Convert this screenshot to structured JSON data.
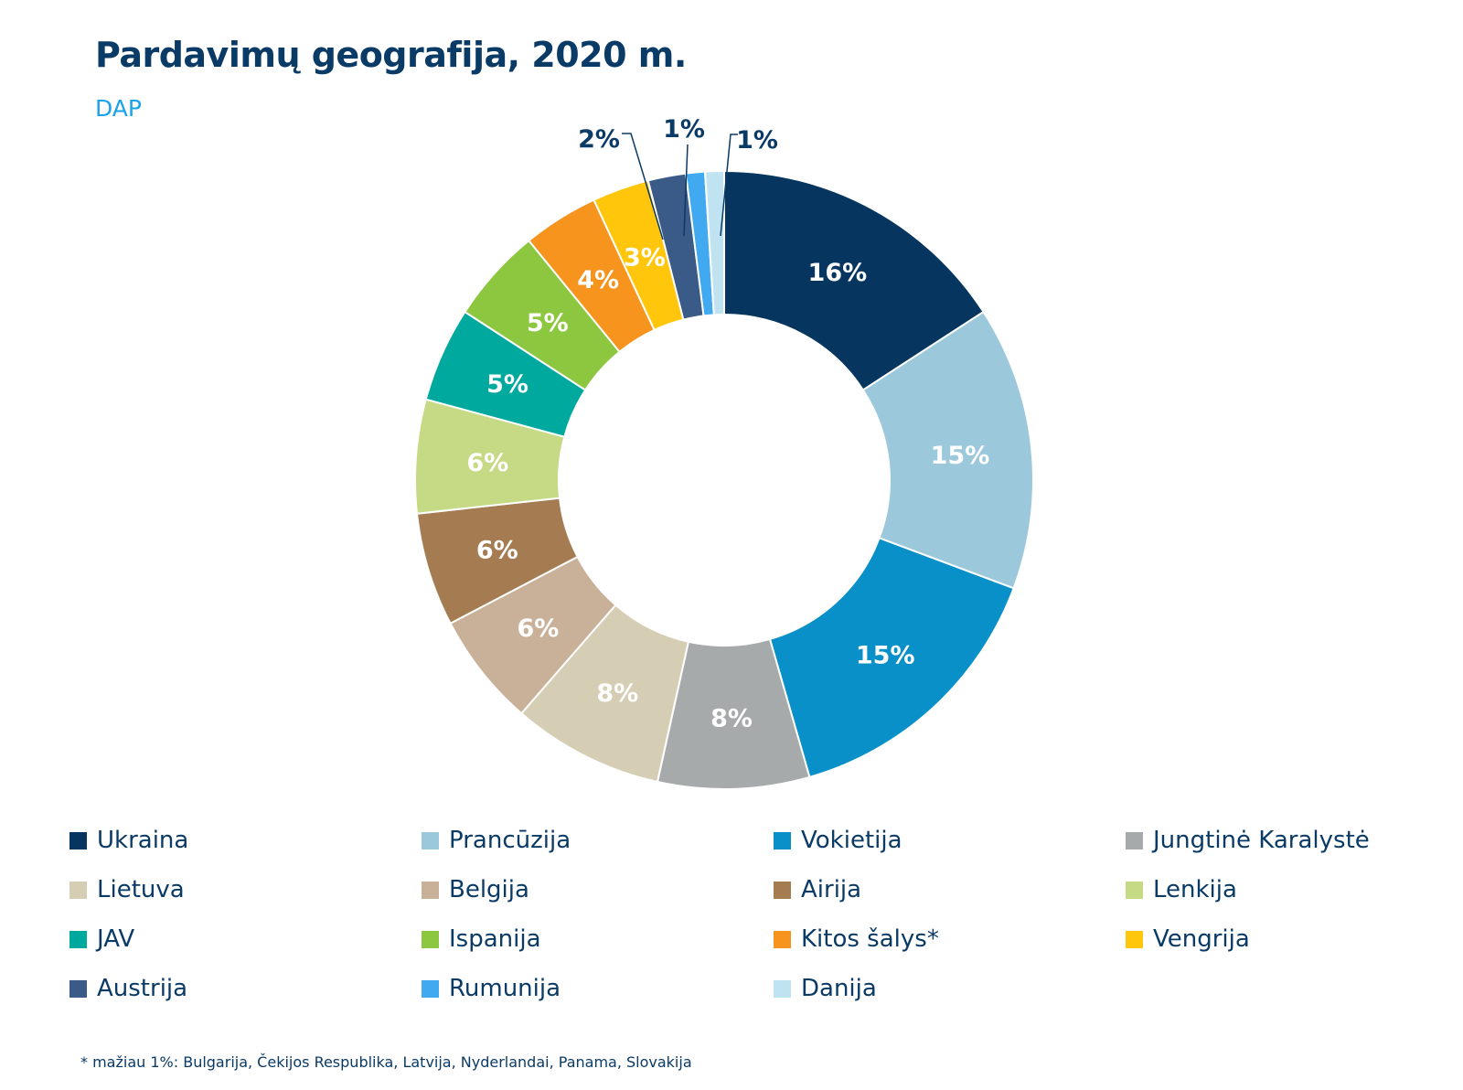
{
  "chart_data": {
    "type": "pie",
    "title": "Pardavimų geografija, 2020 m.",
    "subtitle": "DAP",
    "donut": true,
    "slices": [
      {
        "label": "Ukraina",
        "value": 16,
        "display": "16%",
        "color": "#06365f",
        "text_color": "#ffffff"
      },
      {
        "label": "Prancūzija",
        "value": 15,
        "display": "15%",
        "color": "#9cc8dc",
        "text_color": "#ffffff"
      },
      {
        "label": "Vokietija",
        "value": 15,
        "display": "15%",
        "color": "#0990c8",
        "text_color": "#ffffff"
      },
      {
        "label": "Jungtinė Karalystė",
        "value": 8,
        "display": "8%",
        "color": "#a7aaaa",
        "text_color": "#ffffff"
      },
      {
        "label": "Lietuva",
        "value": 8,
        "display": "8%",
        "color": "#d6ceb4",
        "text_color": "#ffffff"
      },
      {
        "label": "Belgija",
        "value": 6,
        "display": "6%",
        "color": "#c8b198",
        "text_color": "#ffffff"
      },
      {
        "label": "Airija",
        "value": 6,
        "display": "6%",
        "color": "#a57c52",
        "text_color": "#ffffff"
      },
      {
        "label": "Lenkija",
        "value": 6,
        "display": "6%",
        "color": "#c6da86",
        "text_color": "#ffffff"
      },
      {
        "label": "JAV",
        "value": 5,
        "display": "5%",
        "color": "#00a99d",
        "text_color": "#ffffff"
      },
      {
        "label": "Ispanija",
        "value": 5,
        "display": "5%",
        "color": "#8dc63f",
        "text_color": "#ffffff"
      },
      {
        "label": "Kitos šalys*",
        "value": 4,
        "display": "4%",
        "color": "#f7941d",
        "text_color": "#ffffff"
      },
      {
        "label": "Vengrija",
        "value": 3,
        "display": "3%",
        "color": "#ffc60b",
        "text_color": "#ffffff"
      },
      {
        "label": "Austrija",
        "value": 2,
        "display": "2%",
        "color": "#3a5a88",
        "text_color": "#0a3a66",
        "outside": true
      },
      {
        "label": "Rumunija",
        "value": 1,
        "display": "1%",
        "color": "#41a9f0",
        "text_color": "#0a3a66",
        "outside": true
      },
      {
        "label": "Danija",
        "value": 1,
        "display": "1%",
        "color": "#bfe3f0",
        "text_color": "#0a3a66",
        "outside": true
      }
    ],
    "legend_placement": "bottom",
    "footnote": "* mažiau 1%: Bulgarija, Čekijos Respublika, Latvija, Nyderlandai, Panama, Slovakija"
  }
}
